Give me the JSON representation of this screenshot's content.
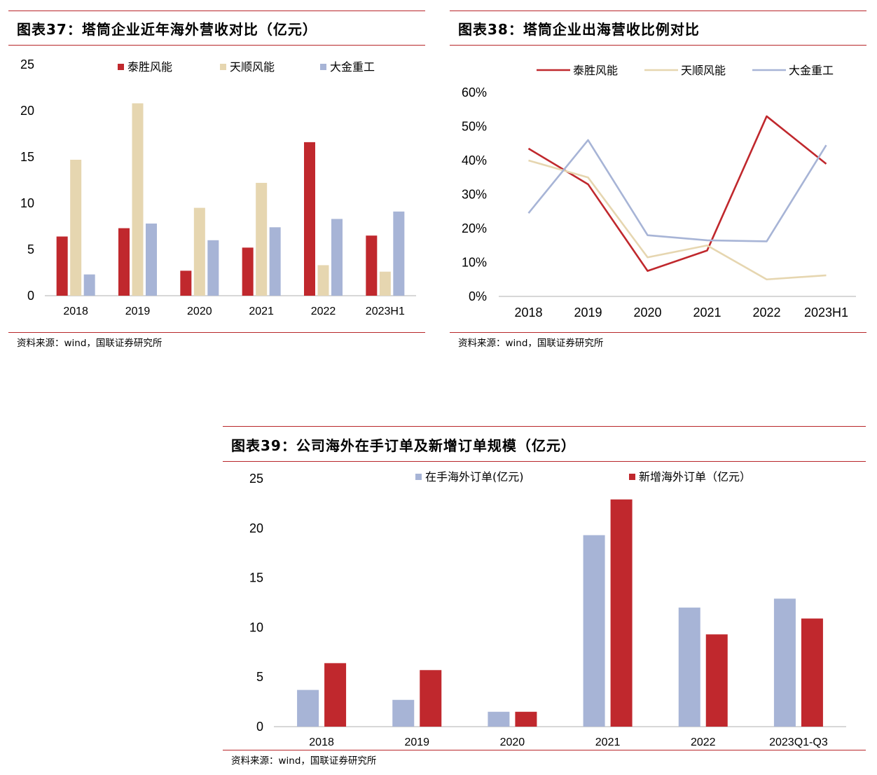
{
  "panels": [
    {
      "title": "图表37：塔筒企业近年海外营收对比（亿元）",
      "source": "资料来源：wind，国联证券研究所"
    },
    {
      "title": "图表38：塔筒企业出海营收比例对比",
      "source": "资料来源：wind，国联证券研究所"
    },
    {
      "title": "图表39：公司海外在手订单及新增订单规模（亿元）",
      "source": "资料来源：wind，国联证券研究所"
    }
  ],
  "colors": {
    "red": "#c0282d",
    "beige": "#e6d6b0",
    "blue": "#a7b4d6",
    "rule": "#b8262a",
    "axis": "#bfbfbf"
  },
  "chart_data": [
    {
      "type": "bar",
      "title": "图表37：塔筒企业近年海外营收对比（亿元）",
      "categories": [
        "2018",
        "2019",
        "2020",
        "2021",
        "2022",
        "2023H1"
      ],
      "series": [
        {
          "name": "泰胜风能",
          "values": [
            6.4,
            7.3,
            2.7,
            5.2,
            16.6,
            6.5
          ]
        },
        {
          "name": "天顺风能",
          "values": [
            14.7,
            20.8,
            9.5,
            12.2,
            3.3,
            2.6
          ]
        },
        {
          "name": "大金重工",
          "values": [
            2.3,
            7.8,
            6.0,
            7.4,
            8.3,
            9.1
          ]
        }
      ],
      "ylim": [
        0,
        25
      ],
      "yticks": [
        "0",
        "5",
        "10",
        "15",
        "20",
        "25"
      ],
      "legend": "top",
      "grid": false
    },
    {
      "type": "line",
      "title": "图表38：塔筒企业出海营收比例对比",
      "categories": [
        "2018",
        "2019",
        "2020",
        "2021",
        "2022",
        "2023H1"
      ],
      "series": [
        {
          "name": "泰胜风能",
          "values": [
            43.5,
            33,
            7.5,
            13.5,
            53,
            39
          ]
        },
        {
          "name": "天顺风能",
          "values": [
            40,
            35,
            11.5,
            15,
            5,
            6.2
          ]
        },
        {
          "name": "大金重工",
          "values": [
            24.5,
            46,
            18,
            16.5,
            16.2,
            44.5
          ]
        }
      ],
      "ylim": [
        0,
        60
      ],
      "yticks": [
        "0%",
        "10%",
        "20%",
        "30%",
        "40%",
        "50%",
        "60%"
      ],
      "legend": "top",
      "grid": false
    },
    {
      "type": "bar",
      "title": "图表39：公司海外在手订单及新增订单规模（亿元）",
      "categories": [
        "2018",
        "2019",
        "2020",
        "2021",
        "2022",
        "2023Q1-Q3"
      ],
      "series": [
        {
          "name": "在手海外订单(亿元)",
          "values": [
            3.7,
            2.7,
            1.5,
            19.3,
            12.0,
            12.9
          ]
        },
        {
          "name": "新增海外订单（亿元）",
          "values": [
            6.4,
            5.7,
            1.5,
            22.9,
            9.3,
            10.9
          ]
        }
      ],
      "ylim": [
        0,
        25
      ],
      "yticks": [
        "0",
        "5",
        "10",
        "15",
        "20",
        "25"
      ],
      "legend": "top",
      "grid": false
    }
  ]
}
